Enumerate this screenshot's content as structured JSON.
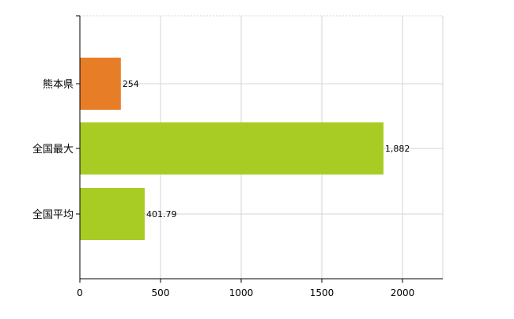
{
  "chart_data": {
    "type": "bar",
    "orientation": "horizontal",
    "categories": [
      "熊本県",
      "全国最大",
      "全国平均"
    ],
    "values": [
      254,
      1882,
      401.79
    ],
    "value_labels": [
      "254",
      "1,882",
      "401.79"
    ],
    "bar_colors": [
      "#e87d28",
      "#a8cc24",
      "#a8cc24"
    ],
    "title": "",
    "xlabel": "",
    "ylabel": "",
    "xlim": [
      0,
      2250
    ],
    "xticks": [
      0,
      500,
      1000,
      1500,
      2000
    ],
    "xtick_labels": [
      "0",
      "500",
      "1000",
      "1500",
      "2000"
    ],
    "grid": true,
    "legend": "none"
  }
}
